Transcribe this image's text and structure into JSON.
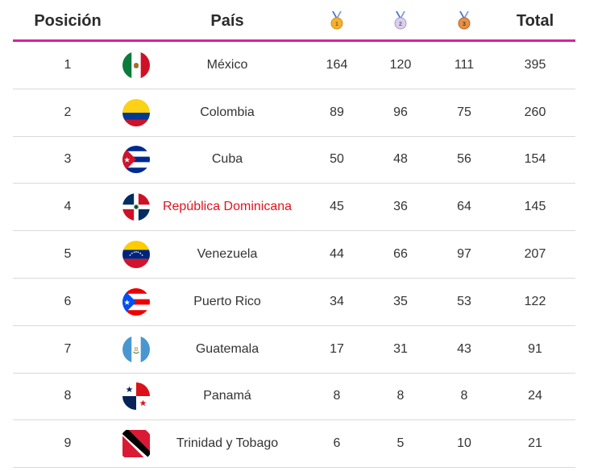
{
  "header": {
    "position": "Posición",
    "country": "País",
    "gold_icon": "gold-medal-icon",
    "silver_icon": "silver-medal-icon",
    "bronze_icon": "bronze-medal-icon",
    "total": "Total"
  },
  "colors": {
    "accent": "#d6249f",
    "highlight": "#e0141e"
  },
  "rows": [
    {
      "position": "1",
      "country": "México",
      "flag": "mexico-flag-icon",
      "gold": "164",
      "silver": "120",
      "bronze": "111",
      "total": "395"
    },
    {
      "position": "2",
      "country": "Colombia",
      "flag": "colombia-flag-icon",
      "gold": "89",
      "silver": "96",
      "bronze": "75",
      "total": "260"
    },
    {
      "position": "3",
      "country": "Cuba",
      "flag": "cuba-flag-icon",
      "gold": "50",
      "silver": "48",
      "bronze": "56",
      "total": "154"
    },
    {
      "position": "4",
      "country": "República Dominicana",
      "flag": "dominican-republic-flag-icon",
      "gold": "45",
      "silver": "36",
      "bronze": "64",
      "total": "145",
      "highlight": true
    },
    {
      "position": "5",
      "country": "Venezuela",
      "flag": "venezuela-flag-icon",
      "gold": "44",
      "silver": "66",
      "bronze": "97",
      "total": "207"
    },
    {
      "position": "6",
      "country": "Puerto Rico",
      "flag": "puerto-rico-flag-icon",
      "gold": "34",
      "silver": "35",
      "bronze": "53",
      "total": "122"
    },
    {
      "position": "7",
      "country": "Guatemala",
      "flag": "guatemala-flag-icon",
      "gold": "17",
      "silver": "31",
      "bronze": "43",
      "total": "91"
    },
    {
      "position": "8",
      "country": "Panamá",
      "flag": "panama-flag-icon",
      "gold": "8",
      "silver": "8",
      "bronze": "8",
      "total": "24"
    },
    {
      "position": "9",
      "country": "Trinidad y Tobago",
      "flag": "trinidad-and-tobago-flag-icon",
      "gold": "6",
      "silver": "5",
      "bronze": "10",
      "total": "21"
    }
  ]
}
